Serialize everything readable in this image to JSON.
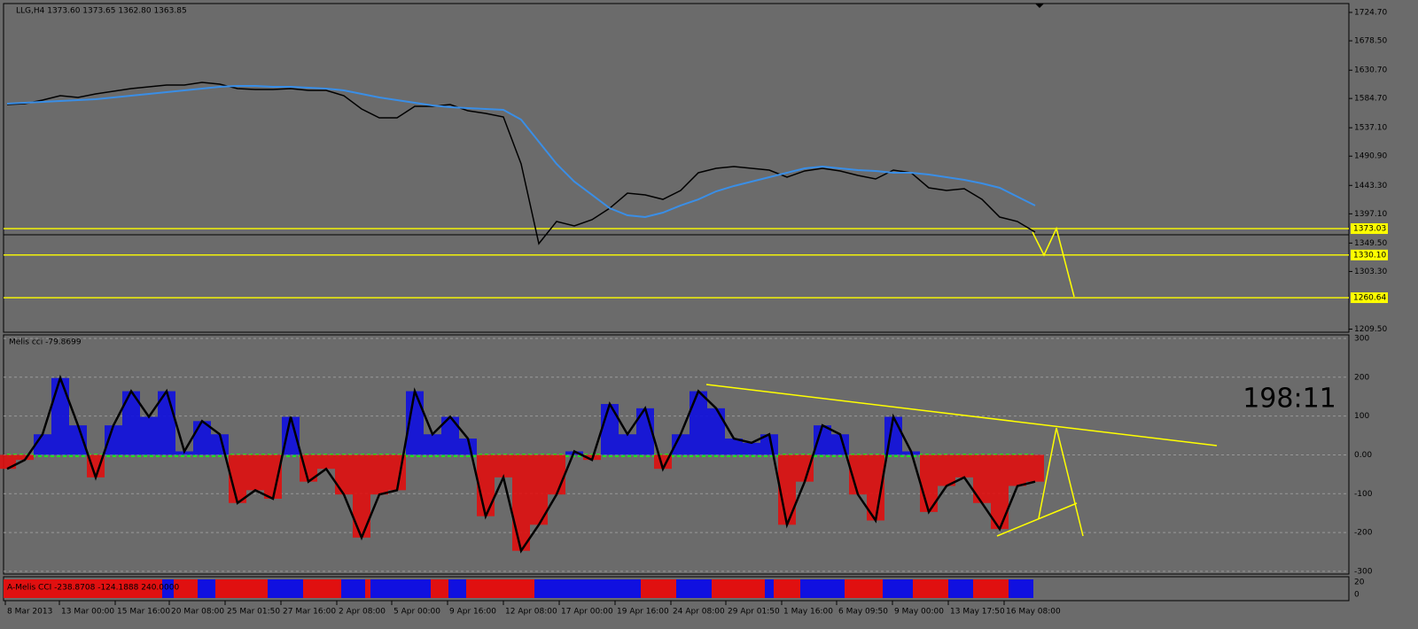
{
  "chart_data": [
    {
      "type": "line",
      "title": "LLG,H4  1373.60 1373.65 1362.80 1363.85",
      "xlim": [
        -0.2,
        75.7
      ],
      "ylim": [
        1204.5,
        1739.1
      ],
      "yticks": [
        {
          "value": 1724.7,
          "label": "1724.70"
        },
        {
          "value": 1678.5,
          "label": "1678.50"
        },
        {
          "value": 1630.7,
          "label": "1630.70"
        },
        {
          "value": 1584.7,
          "label": "1584.70"
        },
        {
          "value": 1537.1,
          "label": "1537.10"
        },
        {
          "value": 1490.9,
          "label": "1490.90"
        },
        {
          "value": 1443.3,
          "label": "1443.30"
        },
        {
          "value": 1397.1,
          "label": "1397.10"
        },
        {
          "value": 1349.5,
          "label": "1349.50"
        },
        {
          "value": 1303.3,
          "label": "1303.30"
        },
        {
          "value": 1209.5,
          "label": "1209.50"
        }
      ],
      "levels": [
        1373.03,
        {
          "value": 1330.1,
          "label": "1330.10"
        },
        1260.64
      ],
      "level_color": "#ffff00",
      "series": [
        {
          "color": "#000000",
          "values": [
            1574.8,
            1576.3,
            1582.0,
            1589.2,
            1586.4,
            1592.1,
            1596.4,
            1600.8,
            1603.7,
            1606.5,
            1606.5,
            1610.9,
            1608.0,
            1600.8,
            1599.3,
            1599.3,
            1600.8,
            1597.9,
            1597.9,
            1589.2,
            1567.6,
            1553.2,
            1553.2,
            1571.9,
            1571.9,
            1574.8,
            1564.7,
            1560.4,
            1554.7,
            1478.3,
            1348.6,
            1384.6,
            1377.4,
            1387.5,
            1406.2,
            1430.7,
            1427.8,
            1420.6,
            1435.0,
            1463.9,
            1471.1,
            1474.0,
            1471.1,
            1468.2,
            1456.7,
            1466.8,
            1471.1,
            1466.8,
            1459.6,
            1453.8,
            1468.2,
            1463.9,
            1439.4,
            1435.0,
            1437.9,
            1420.6,
            1391.8,
            1384.6,
            1367.3
          ]
        },
        {
          "color": "#3a8ee6",
          "values": [
            1576.3,
            1577.7,
            1579.2,
            1580.6,
            1582.0,
            1583.5,
            1586.4,
            1589.2,
            1592.1,
            1595.0,
            1597.9,
            1600.8,
            1603.7,
            1605.1,
            1605.1,
            1603.7,
            1603.7,
            1602.2,
            1600.8,
            1597.9,
            1592.1,
            1586.4,
            1582.0,
            1577.7,
            1573.4,
            1570.5,
            1569.1,
            1567.6,
            1566.2,
            1550.3,
            1514.3,
            1478.3,
            1449.5,
            1427.9,
            1406.2,
            1394.7,
            1391.8,
            1399.0,
            1410.6,
            1420.6,
            1433.6,
            1442.3,
            1449.5,
            1456.7,
            1463.9,
            1471.1,
            1474.0,
            1471.1,
            1468.2,
            1466.8,
            1463.9,
            1463.9,
            1461.0,
            1456.7,
            1452.4,
            1446.6,
            1439.4,
            1425.0,
            1410.6
          ]
        }
      ]
    },
    {
      "type": "bar",
      "title": "Melis cci -79.8699",
      "annotation": "198:11",
      "xlim": [
        -0.2,
        75.7
      ],
      "ylim": [
        -307,
        309
      ],
      "yticks": [
        300,
        200,
        100,
        {
          "value": 0,
          "label": "0.00"
        },
        -100,
        -200,
        -300
      ],
      "positive_color": "#1010e0",
      "negative_color": "#e01010",
      "line_color": "#000000",
      "values": [
        -36,
        -13,
        53,
        198,
        76,
        -58,
        76,
        164,
        98,
        164,
        9,
        87,
        53,
        -124,
        -91,
        -113,
        98,
        -69,
        -36,
        -102,
        -213,
        -102,
        -91,
        164,
        53,
        98,
        42,
        -158,
        -58,
        -247,
        -180,
        -102,
        9,
        -13,
        131,
        53,
        120,
        -36,
        53,
        164,
        120,
        42,
        31,
        53,
        -180,
        -69,
        76,
        53,
        -102,
        -169,
        98,
        9,
        -147,
        -80,
        -58,
        -124,
        -191,
        -80,
        -69
      ],
      "xticks": [
        {
          "value": -0.1,
          "label": "8 Mar 2013"
        },
        {
          "value": 2.95,
          "label": "13 Mar 00:00"
        },
        {
          "value": 6.1,
          "label": "15 Mar 16:00"
        },
        {
          "value": 9.15,
          "label": "20 Mar 08:00"
        },
        {
          "value": 12.3,
          "label": "25 Mar 01:50"
        },
        {
          "value": 15.45,
          "label": "27 Mar 16:00"
        },
        {
          "value": 18.6,
          "label": "2 Apr 08:00"
        },
        {
          "value": 21.7,
          "label": "5 Apr 00:00"
        },
        {
          "value": 24.85,
          "label": "9 Apr 16:00"
        },
        {
          "value": 28,
          "label": "12 Apr 08:00"
        },
        {
          "value": 31.15,
          "label": "17 Apr 00:00"
        },
        {
          "value": 34.3,
          "label": "19 Apr 16:00"
        },
        {
          "value": 37.45,
          "label": "24 Apr 08:00"
        },
        {
          "value": 40.55,
          "label": "29 Apr 01:50"
        },
        {
          "value": 43.7,
          "label": "1 May 16:00"
        },
        {
          "value": 46.8,
          "label": "6 May 09:50"
        },
        {
          "value": 49.95,
          "label": "9 May 00:00"
        },
        {
          "value": 53.1,
          "label": "13 May 17:50"
        },
        {
          "value": 56.25,
          "label": "16 May 08:00"
        }
      ]
    },
    {
      "type": "strip",
      "title": "A-Melis CCI -238.8708 -124.1888 240.0000",
      "yticks": [
        20,
        0
      ]
    }
  ]
}
